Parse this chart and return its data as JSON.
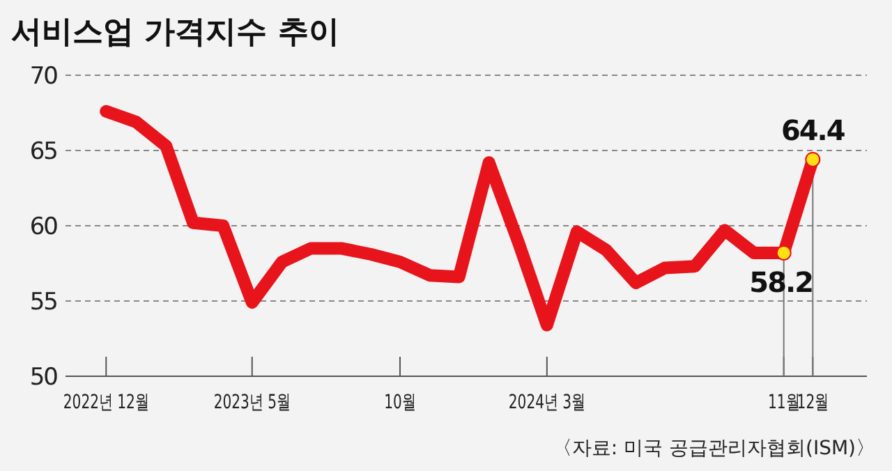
{
  "chart_data": {
    "type": "line",
    "title": "서비스업 가격지수 추이",
    "x": [
      "2022-12",
      "2023-01",
      "2023-02",
      "2023-03",
      "2023-04",
      "2023-05",
      "2023-06",
      "2023-07",
      "2023-08",
      "2023-09",
      "2023-10",
      "2023-11",
      "2023-12",
      "2024-01",
      "2024-02",
      "2024-03",
      "2024-04",
      "2024-05",
      "2024-06",
      "2024-07",
      "2024-08",
      "2024-09",
      "2024-10",
      "2024-11",
      "2024-12"
    ],
    "series": [
      {
        "color": "#e8141c",
        "values": [
          67.6,
          66.9,
          65.3,
          60.2,
          60.0,
          54.9,
          57.6,
          58.5,
          58.5,
          58.1,
          57.6,
          56.7,
          56.6,
          64.2,
          58.8,
          53.4,
          59.6,
          58.4,
          56.2,
          57.2,
          57.3,
          59.7,
          58.2,
          58.2,
          64.4
        ]
      }
    ],
    "xlim": [
      "2022-10-20",
      "2025-01-26"
    ],
    "xticks": [
      {
        "value": "2022-12",
        "label": "2022년 12월"
      },
      {
        "value": "2023-05",
        "label": "2023년 5월"
      },
      {
        "value": "2023-10",
        "label": "10월"
      },
      {
        "value": "2024-03",
        "label": "2024년 3월"
      },
      {
        "value": "2024-11",
        "label": "11월"
      },
      {
        "value": "2024-12",
        "label": "12월"
      }
    ],
    "ylim": [
      50,
      70
    ],
    "yticks": [
      50,
      55,
      60,
      65,
      70
    ],
    "grid": "y",
    "marker": "none",
    "line_style": "solid",
    "annotations": [
      {
        "text": "58.2",
        "x": "2024-11",
        "y": 58.2
      },
      {
        "text": "64.4",
        "x": "2024-12",
        "y": 64.4
      },
      "〈자료: 미국 공급관리자협회(ISM)〉"
    ]
  }
}
